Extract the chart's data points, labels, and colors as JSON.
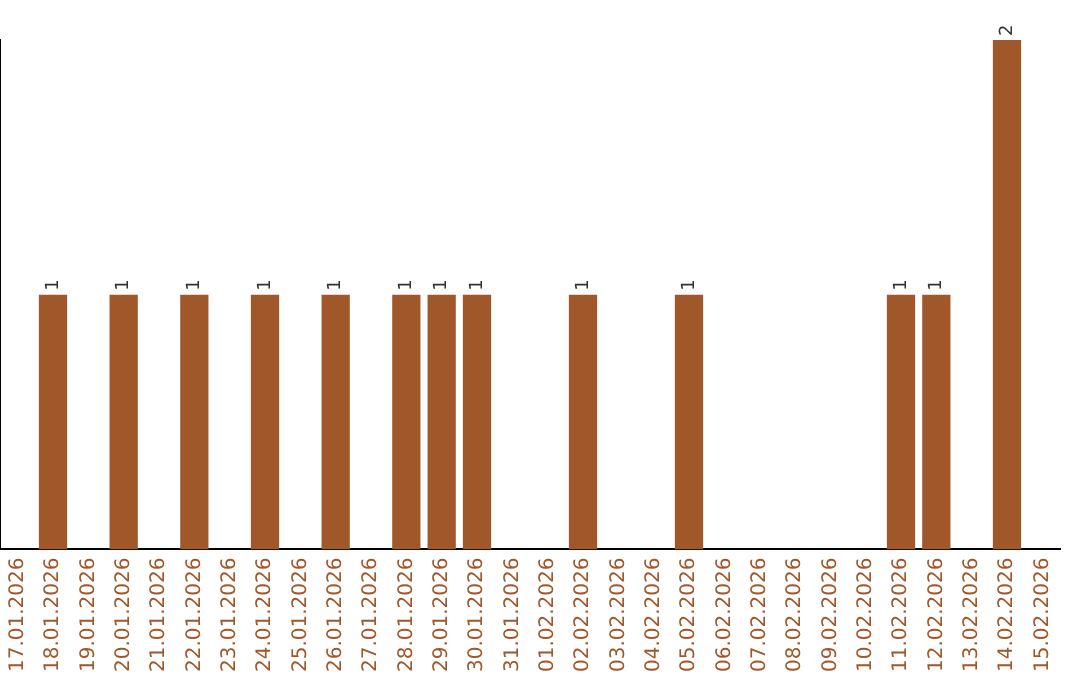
{
  "chart_data": {
    "type": "bar",
    "categories": [
      "17.01.2026",
      "18.01.2026",
      "19.01.2026",
      "20.01.2026",
      "21.01.2026",
      "22.01.2026",
      "23.01.2026",
      "24.01.2026",
      "25.01.2026",
      "26.01.2026",
      "27.01.2026",
      "28.01.2026",
      "29.01.2026",
      "30.01.2026",
      "31.01.2026",
      "01.02.2026",
      "02.02.2026",
      "03.02.2026",
      "04.02.2026",
      "05.02.2026",
      "06.02.2026",
      "07.02.2026",
      "08.02.2026",
      "09.02.2026",
      "10.02.2026",
      "11.02.2026",
      "12.02.2026",
      "13.02.2026",
      "14.02.2026",
      "15.02.2026"
    ],
    "values": [
      0,
      1,
      0,
      1,
      0,
      1,
      0,
      1,
      0,
      1,
      0,
      1,
      1,
      1,
      0,
      0,
      1,
      0,
      0,
      1,
      0,
      0,
      0,
      0,
      0,
      1,
      1,
      0,
      2,
      0
    ],
    "value_labels": [
      null,
      "1",
      null,
      "1",
      null,
      "1",
      null,
      "1",
      null,
      "1",
      null,
      "1",
      "1",
      "1",
      null,
      null,
      "1",
      null,
      null,
      "1",
      null,
      null,
      null,
      null,
      null,
      "1",
      "1",
      null,
      "2",
      null
    ],
    "color": "#a0572a",
    "ylim": [
      0,
      2
    ],
    "tick_labels": "x",
    "grid": false,
    "legend": false
  }
}
